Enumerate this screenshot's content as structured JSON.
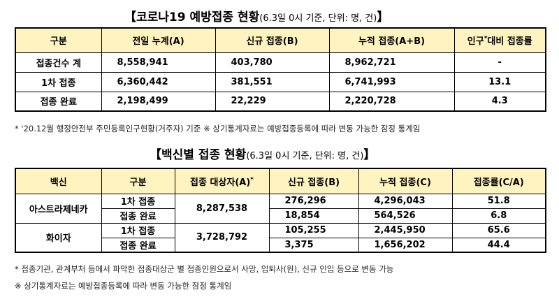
{
  "table1": {
    "title_main": "【코로나19 예방접종 현황",
    "title_sub": "(6.3일 0시 기준, 단위: 명, 건)",
    "title_end": "】",
    "headers": [
      "구분",
      "전일 누계(A)",
      "신규 접종(B)",
      "누적 접종(A+B)",
      "인구",
      "*",
      "대비 접종률"
    ],
    "rows": [
      [
        "접종건수 계",
        "8,558,941",
        "403,780",
        "8,962,721",
        "-"
      ],
      [
        "1차 접종",
        "6,360,442",
        "381,551",
        "6,741,993",
        "13.1"
      ],
      [
        "접종 완료",
        "2,198,499",
        "22,229",
        "2,220,728",
        "4.3"
      ]
    ],
    "note": "* '20.12월 행정안전부 주민등록인구현황(거주자) 기준   ※ 상기통계자료는 예방접종등록에 따라 변동 가능한 잠정 통계임"
  },
  "table2": {
    "title_main": "【백신별 접종 현황",
    "title_sub": "(6.3일 0시 기준, 단위: 명, 건)",
    "title_end": "】",
    "headers": [
      "백신",
      "구분",
      "접종 대상자(A)",
      "*",
      "신규 접종(B)",
      "누적 접종(C)",
      "접종률(C/A)"
    ],
    "vaccines": [
      {
        "name": "아스트라제네카",
        "target": "8,287,538",
        "rows": [
          [
            "1차 접종",
            "276,296",
            "4,296,043",
            "51.8"
          ],
          [
            "접종 완료",
            "18,854",
            "564,526",
            "6.8"
          ]
        ]
      },
      {
        "name": "화이자",
        "target": "3,728,792",
        "rows": [
          [
            "1차 접종",
            "105,255",
            "2,445,950",
            "65.6"
          ],
          [
            "접종 완료",
            "3,375",
            "1,656,202",
            "44.4"
          ]
        ]
      }
    ],
    "notes": [
      "* 접종기관, 관계부처 등에서 파악한 접종대상군 별 접종인원으로서 사망, 입퇴사(원), 신규 인입 등으로 변동 가능",
      "※ 상기통계자료는 예방접종등록에 따라 변동 가능한 잠정 통계임"
    ]
  }
}
